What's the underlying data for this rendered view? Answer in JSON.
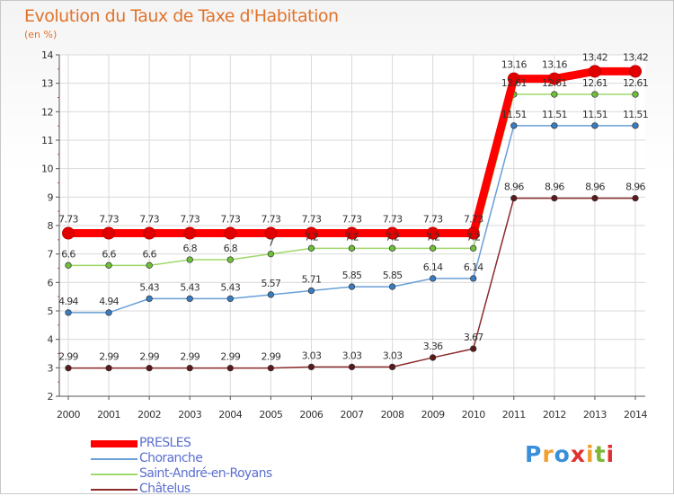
{
  "title": "Evolution du Taux de Taxe d'Habitation",
  "unit": "(en %)",
  "logo": {
    "text": "Proxiti",
    "colors": [
      "#3a8fd8",
      "#f0a030",
      "#3a8fd8",
      "#e03030",
      "#f0a030",
      "#7ab835",
      "#e03030"
    ]
  },
  "chart_data": {
    "type": "line",
    "title": "Evolution du Taux de Taxe d'Habitation",
    "ylabel": "(en %)",
    "xlabel": "",
    "x": [
      "2000",
      "2001",
      "2002",
      "2003",
      "2004",
      "2005",
      "2006",
      "2007",
      "2008",
      "2009",
      "2010",
      "2011",
      "2012",
      "2013",
      "2014"
    ],
    "ylim": [
      2,
      14
    ],
    "yticks": [
      "2",
      "3",
      "4",
      "5",
      "6",
      "7",
      "8",
      "9",
      "10",
      "11",
      "12",
      "13",
      "14"
    ],
    "grid": true,
    "legend": "bottom-left",
    "series": [
      {
        "name": "Châtelus",
        "color": "#8b2b2b",
        "marker": "#5a1a1a",
        "values": [
          2.99,
          2.99,
          2.99,
          2.99,
          2.99,
          2.99,
          3.03,
          3.03,
          3.03,
          3.36,
          3.67,
          8.96,
          8.96,
          8.96,
          8.96
        ],
        "labels": [
          "2.99",
          "2.99",
          "2.99",
          "2.99",
          "2.99",
          "2.99",
          "3.03",
          "3.03",
          "3.03",
          "3.36",
          "3.67",
          "8.96",
          "8.96",
          "8.96",
          "8.96"
        ]
      },
      {
        "name": "Choranche",
        "color": "#6a9fd8",
        "marker": "#3a7cc0",
        "values": [
          4.94,
          4.94,
          5.43,
          5.43,
          5.43,
          5.57,
          5.71,
          5.85,
          5.85,
          6.14,
          6.14,
          11.51,
          11.51,
          11.51,
          11.51
        ],
        "labels": [
          "4.94",
          "4.94",
          "5.43",
          "5.43",
          "5.43",
          "5.57",
          "5.71",
          "5.85",
          "5.85",
          "6.14",
          "6.14",
          "11.51",
          "11.51",
          "11.51",
          "11.51"
        ]
      },
      {
        "name": "Saint-André-en-Royans",
        "color": "#9fd86a",
        "marker": "#6ec03a",
        "values": [
          6.6,
          6.6,
          6.6,
          6.8,
          6.8,
          7.0,
          7.2,
          7.2,
          7.2,
          7.2,
          7.2,
          12.61,
          12.61,
          12.61,
          12.61
        ],
        "labels": [
          "6.6",
          "6.6",
          "6.6",
          "6.8",
          "6.8",
          "7",
          "7.2",
          "7.2",
          "7.2",
          "7.2",
          "7.2",
          "12.61",
          "12.61",
          "12.61",
          "12.61"
        ]
      },
      {
        "name": "PRESLES",
        "color": "#ff0000",
        "marker": "#e00000",
        "values": [
          7.73,
          7.73,
          7.73,
          7.73,
          7.73,
          7.73,
          7.73,
          7.73,
          7.73,
          7.73,
          7.73,
          13.16,
          13.16,
          13.42,
          13.42
        ],
        "labels": [
          "7.73",
          "7.73",
          "7.73",
          "7.73",
          "7.73",
          "7.73",
          "7.73",
          "7.73",
          "7.73",
          "7.73",
          "7.73",
          "13.16",
          "13.16",
          "13.42",
          "13.42"
        ]
      }
    ]
  },
  "legend": [
    {
      "name": "PRESLES",
      "color": "#ff0000"
    },
    {
      "name": "Choranche",
      "color": "#6a9fd8"
    },
    {
      "name": "Saint-André-en-Royans",
      "color": "#9fd86a"
    },
    {
      "name": "Châtelus",
      "color": "#8b2b2b"
    }
  ]
}
